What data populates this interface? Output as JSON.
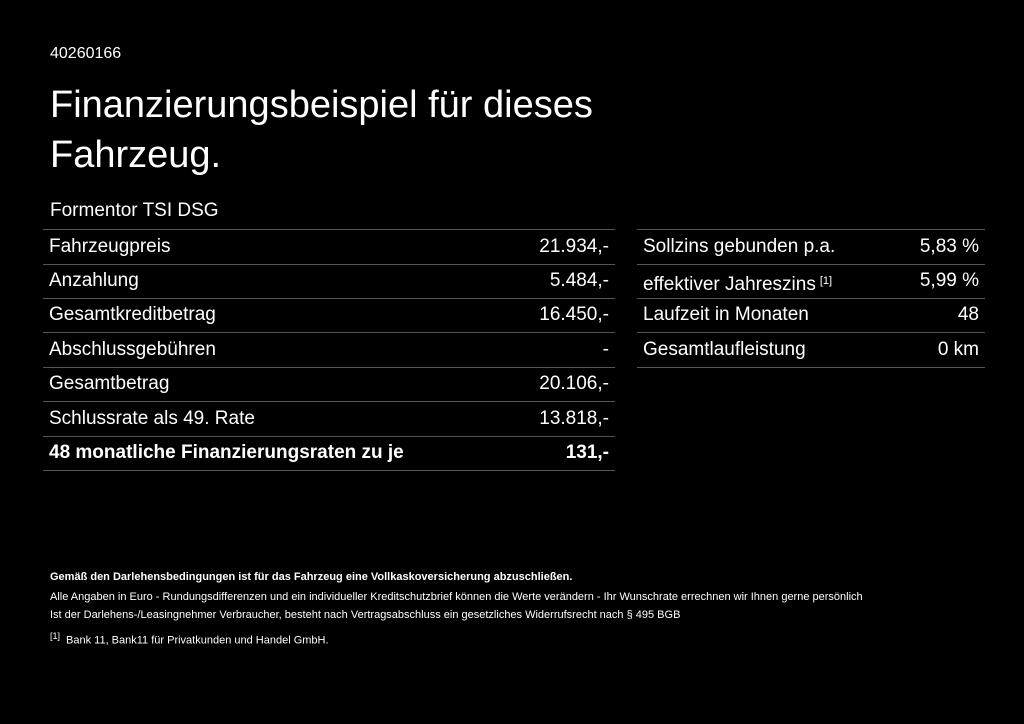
{
  "header": {
    "id": "40260166",
    "title_line1": "Finanzierungsbeispiel für dieses",
    "title_line2": "Fahrzeug.",
    "model": "Formentor TSI DSG"
  },
  "left_table": {
    "rows": [
      [
        "Fahrzeugpreis",
        "21.934,-"
      ],
      [
        "Anzahlung",
        "5.484,-"
      ],
      [
        "Gesamtkreditbetrag",
        "16.450,-"
      ],
      [
        "Abschlussgebühren",
        "-"
      ],
      [
        "Gesamtbetrag",
        "20.106,-"
      ],
      [
        "Schlussrate als 49. Rate",
        "13.818,-"
      ],
      [
        "48 monatliche Finanzierungsraten zu je",
        "131,-"
      ]
    ]
  },
  "right_table": {
    "rows": [
      [
        "Sollzins gebunden p.a.",
        "5,83 %"
      ],
      [
        "effektiver Jahreszins",
        "5,99 %"
      ],
      [
        "Laufzeit in Monaten",
        "48"
      ],
      [
        "Gesamtlaufleistung",
        "0 km"
      ]
    ],
    "footnote_ref": "[1]"
  },
  "notes": {
    "bold": "Gemäß den Darlehensbedingungen ist für das Fahrzeug eine Vollkaskoversicherung abzuschließen.",
    "line1": "Alle Angaben in Euro - Rundungsdifferenzen und ein individueller Kreditschutzbrief können die Werte verändern - Ihr Wunschrate errechnen wir Ihnen gerne persönlich",
    "line2": "Ist der Darlehens-/Leasingnehmer Verbraucher, besteht nach Vertragsabschluss ein gesetzliches Widerrufsrecht nach § 495 BGB",
    "footnote_marker": "[1]",
    "footnote_text": "Bank 11, Bank11 für Privatkunden und Handel GmbH."
  }
}
